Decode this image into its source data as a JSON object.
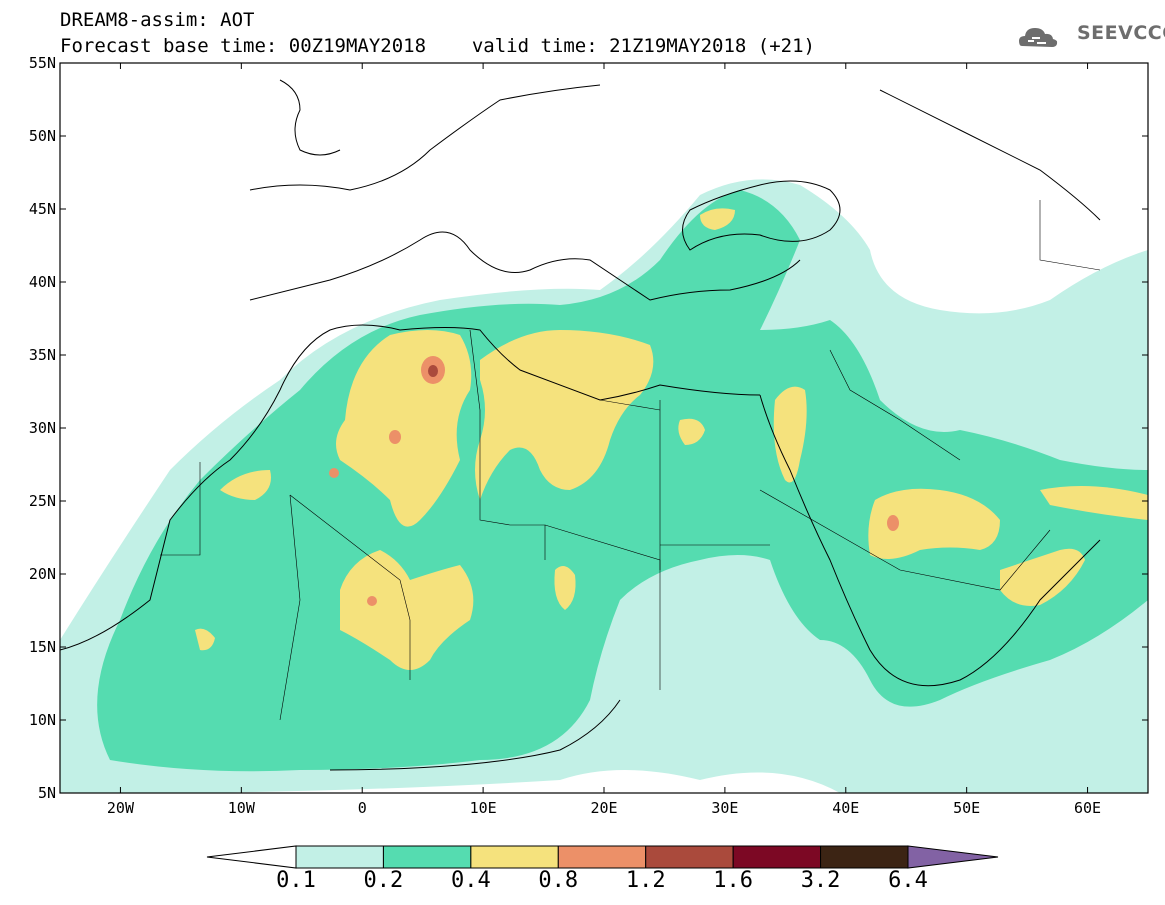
{
  "header": {
    "title_line1": "DREAM8-assim: AOT",
    "forecast_label": "Forecast base time: 00Z19MAY2018",
    "valid_label": "valid time: 21Z19MAY2018 (+21)",
    "logo_text": "SEEVCCC"
  },
  "map": {
    "lat_labels": [
      "55N",
      "50N",
      "45N",
      "40N",
      "35N",
      "30N",
      "25N",
      "20N",
      "15N",
      "10N",
      "5N"
    ],
    "lat_values": [
      55,
      50,
      45,
      40,
      35,
      30,
      25,
      20,
      15,
      10,
      5
    ],
    "lon_labels": [
      "20W",
      "10W",
      "0",
      "10E",
      "20E",
      "30E",
      "40E",
      "50E",
      "60E"
    ],
    "lon_values": [
      -20,
      -10,
      0,
      10,
      20,
      30,
      40,
      50,
      60
    ],
    "lon_range": [
      -25,
      65
    ],
    "lat_range": [
      5,
      55
    ],
    "variable": "AOT"
  },
  "colorbar": {
    "levels": [
      "0.1",
      "0.2",
      "0.4",
      "0.8",
      "1.2",
      "1.6",
      "3.2",
      "6.4"
    ],
    "colors": [
      "#ffffff",
      "#c2f0e6",
      "#55dcb0",
      "#f5e27d",
      "#ec9068",
      "#aa4a3c",
      "#7c0824",
      "#3c2414",
      "#8262a4"
    ]
  }
}
